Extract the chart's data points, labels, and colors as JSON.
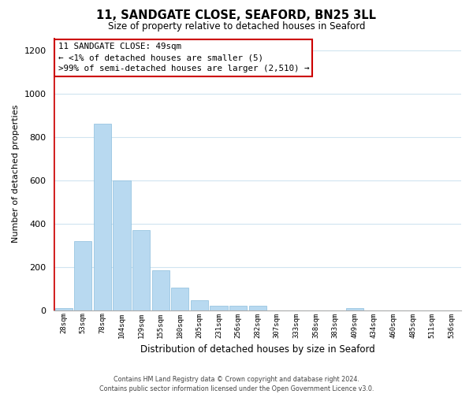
{
  "title": "11, SANDGATE CLOSE, SEAFORD, BN25 3LL",
  "subtitle": "Size of property relative to detached houses in Seaford",
  "xlabel": "Distribution of detached houses by size in Seaford",
  "ylabel": "Number of detached properties",
  "bar_labels": [
    "28sqm",
    "53sqm",
    "78sqm",
    "104sqm",
    "129sqm",
    "155sqm",
    "180sqm",
    "205sqm",
    "231sqm",
    "256sqm",
    "282sqm",
    "307sqm",
    "333sqm",
    "358sqm",
    "383sqm",
    "409sqm",
    "434sqm",
    "460sqm",
    "485sqm",
    "511sqm",
    "536sqm"
  ],
  "bar_heights": [
    10,
    320,
    860,
    600,
    370,
    185,
    105,
    45,
    20,
    20,
    20,
    0,
    0,
    0,
    0,
    10,
    0,
    0,
    0,
    0,
    0
  ],
  "bar_color": "#b8d9f0",
  "bar_edge_color": "#8bbedd",
  "highlight_bar_color": "#cc0000",
  "ylim": [
    0,
    1260
  ],
  "yticks": [
    0,
    200,
    400,
    600,
    800,
    1000,
    1200
  ],
  "annotation_title": "11 SANDGATE CLOSE: 49sqm",
  "annotation_line1": "← <1% of detached houses are smaller (5)",
  "annotation_line2": ">99% of semi-detached houses are larger (2,510) →",
  "annotation_box_color": "#ffffff",
  "annotation_box_edge_color": "#cc0000",
  "footer_line1": "Contains HM Land Registry data © Crown copyright and database right 2024.",
  "footer_line2": "Contains public sector information licensed under the Open Government Licence v3.0.",
  "grid_color": "#d0e4f0",
  "background_color": "#ffffff"
}
